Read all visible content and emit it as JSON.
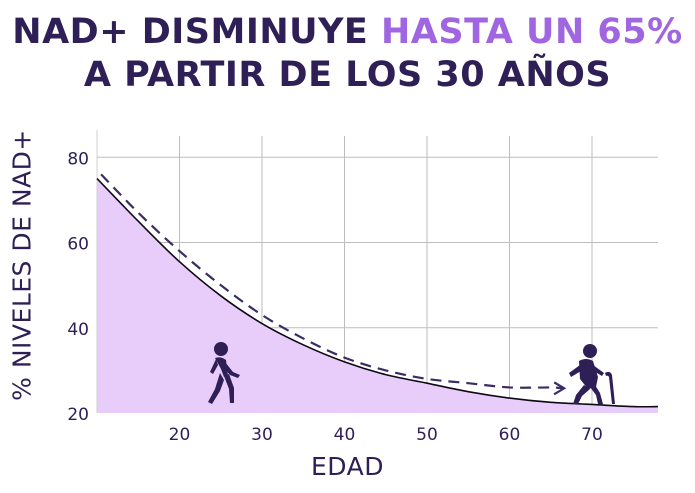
{
  "chart_data": {
    "type": "area",
    "title_line1_prefix": "NAD+ DISMINUYE ",
    "title_line1_highlight": "HASTA UN 65%",
    "title_line2": "A PARTIR DE LOS 30 AÑOS",
    "xlabel": "EDAD",
    "ylabel": "% NIVELES DE NAD+",
    "xlim": [
      10,
      78
    ],
    "ylim": [
      20,
      85
    ],
    "x_ticks": [
      20,
      30,
      40,
      50,
      60,
      70
    ],
    "y_ticks": [
      20,
      40,
      60,
      80
    ],
    "grid": true,
    "series": [
      {
        "style": "solid-area",
        "x": [
          10,
          15,
          20,
          25,
          30,
          35,
          40,
          45,
          50,
          55,
          60,
          65,
          70,
          75,
          78
        ],
        "y": [
          75,
          65,
          55.5,
          47.5,
          41,
          36,
          32,
          29,
          27,
          25,
          23.5,
          22.5,
          22,
          21.5,
          21.5
        ]
      },
      {
        "style": "dashed",
        "x": [
          10.5,
          15,
          20,
          25,
          30,
          35,
          40,
          45,
          50,
          55,
          60,
          65,
          66.5
        ],
        "y": [
          76,
          67,
          58,
          50,
          43,
          37.5,
          33,
          30,
          28,
          27,
          26,
          26,
          25.8
        ]
      }
    ],
    "colors": {
      "title": "#2e1f56",
      "accent": "#a065e0",
      "area_fill": "#e8cdfb",
      "line": "#0d0a14",
      "dashed": "#3b2d63",
      "grid": "#bdbdbd",
      "axis_text": "#2e1f56",
      "icon": "#2e1f56"
    },
    "icons": [
      "walking-person-icon",
      "elderly-person-with-cane-icon"
    ]
  }
}
